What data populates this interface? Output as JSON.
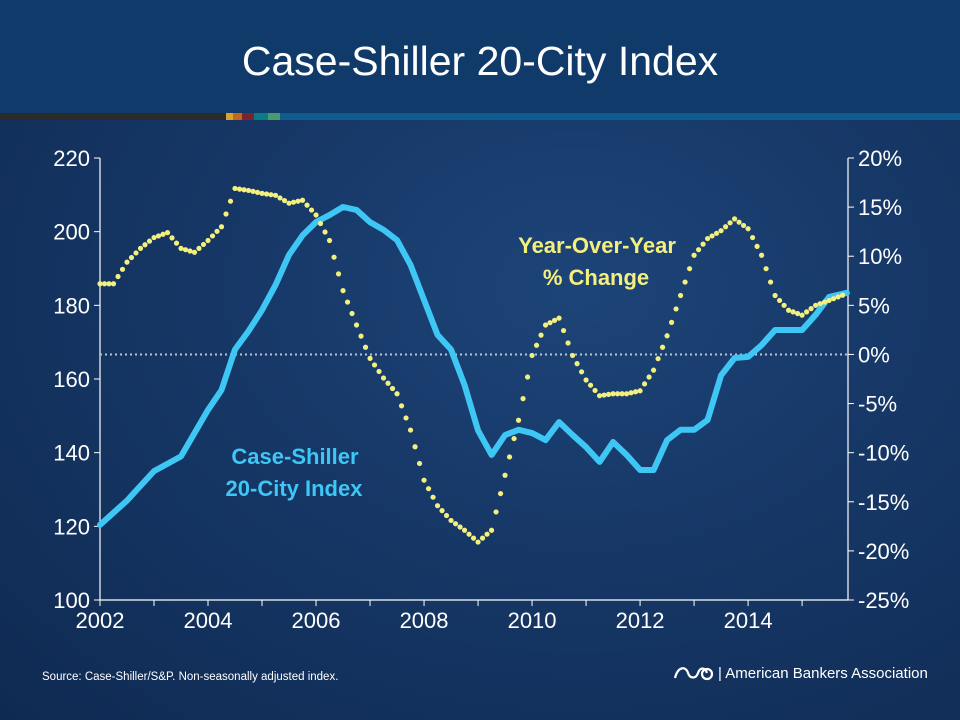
{
  "title": "Case-Shiller 20-City Index",
  "source": "Source: Case-Shiller/S&P. Non-seasonally adjusted index.",
  "logo_text": "| American Bankers Association",
  "colors": {
    "index": "#3ec6f5",
    "yoy": "#f3f07e",
    "zero_line": "#b9c4d4",
    "stripe": [
      "#2a2a2a",
      "#d9a233",
      "#c06a17",
      "#7a2430",
      "#0d7b86",
      "#4c9a6c",
      "#0e5d8e"
    ]
  },
  "chart_data": {
    "type": "line",
    "title": "Case-Shiller 20-City Index",
    "xlim": [
      2002,
      2015.85
    ],
    "x_ticks": [
      "2002",
      "2004",
      "2006",
      "2008",
      "2010",
      "2012",
      "2014"
    ],
    "y_left": {
      "lim": [
        100,
        220
      ],
      "ticks": [
        "100",
        "120",
        "140",
        "160",
        "180",
        "200",
        "220"
      ]
    },
    "y_right": {
      "lim": [
        -25,
        20
      ],
      "ticks": [
        "-25%",
        "-20%",
        "-15%",
        "-10%",
        "-5%",
        "0%",
        "5%",
        "10%",
        "15%",
        "20%"
      ]
    },
    "grid": false,
    "annotations": {
      "index_label": [
        "Case-Shiller",
        "20-City Index"
      ],
      "yoy_label": [
        "Year-Over-Year",
        "% Change"
      ]
    },
    "series": [
      {
        "name": "Case-Shiller 20-City Index",
        "axis": "left",
        "style": "solid",
        "x": [
          2002,
          2002.5,
          2003,
          2003.5,
          2004,
          2004.25,
          2004.5,
          2004.75,
          2005,
          2005.25,
          2005.5,
          2005.75,
          2006,
          2006.25,
          2006.5,
          2006.75,
          2007,
          2007.25,
          2007.5,
          2007.75,
          2008,
          2008.25,
          2008.5,
          2008.75,
          2009,
          2009.25,
          2009.5,
          2009.75,
          2010,
          2010.25,
          2010.5,
          2010.75,
          2011,
          2011.25,
          2011.5,
          2011.75,
          2012,
          2012.25,
          2012.5,
          2012.75,
          2013,
          2013.25,
          2013.5,
          2013.75,
          2014,
          2014.25,
          2014.5,
          2014.75,
          2015,
          2015.25,
          2015.5,
          2015.83
        ],
        "values": [
          120.4,
          127,
          135,
          139,
          151.6,
          157,
          168,
          173,
          178.7,
          185.5,
          193.7,
          199,
          202.6,
          204.5,
          206.7,
          205.9,
          202.6,
          200.5,
          197.7,
          191,
          181.5,
          172,
          168,
          158.4,
          146,
          139.4,
          144.8,
          146.2,
          145.3,
          143.4,
          148.3,
          144.8,
          141.5,
          137.5,
          142.9,
          139.4,
          135.3,
          135.3,
          143.4,
          146.2,
          146.2,
          148.9,
          161,
          165.7,
          166,
          169.2,
          173.3,
          173.3,
          173.3,
          177.4,
          182.3,
          183.4
        ]
      },
      {
        "name": "Year-Over-Year % Change",
        "axis": "right",
        "style": "dotted",
        "x": [
          2002,
          2002.25,
          2002.5,
          2002.75,
          2003,
          2003.25,
          2003.5,
          2003.75,
          2004,
          2004.25,
          2004.5,
          2004.75,
          2005,
          2005.25,
          2005.5,
          2005.75,
          2006,
          2006.25,
          2006.5,
          2006.75,
          2007,
          2007.25,
          2007.5,
          2007.75,
          2008,
          2008.25,
          2008.5,
          2008.75,
          2009,
          2009.25,
          2009.5,
          2009.75,
          2010,
          2010.25,
          2010.5,
          2010.75,
          2011,
          2011.25,
          2011.5,
          2011.75,
          2012,
          2012.25,
          2012.5,
          2012.75,
          2013,
          2013.25,
          2013.5,
          2013.75,
          2014,
          2014.25,
          2014.5,
          2014.75,
          2015,
          2015.25,
          2015.5,
          2015.83
        ],
        "values": [
          7.2,
          7.2,
          9.4,
          10.8,
          11.9,
          12.4,
          10.8,
          10.4,
          11.6,
          13,
          16.9,
          16.7,
          16.4,
          16.2,
          15.4,
          15.7,
          14.2,
          11.6,
          6.5,
          3,
          -0.4,
          -2.4,
          -4,
          -7.7,
          -12.8,
          -15.4,
          -16.9,
          -17.9,
          -19.1,
          -17.9,
          -12.3,
          -6.7,
          -0.1,
          3,
          3.7,
          -0.1,
          -2.6,
          -4.2,
          -4,
          -4,
          -3.7,
          -1.6,
          1.9,
          6,
          10.1,
          11.8,
          12.6,
          13.8,
          12.8,
          10.1,
          6,
          4.5,
          4,
          5,
          5.5,
          6.2
        ]
      }
    ]
  }
}
